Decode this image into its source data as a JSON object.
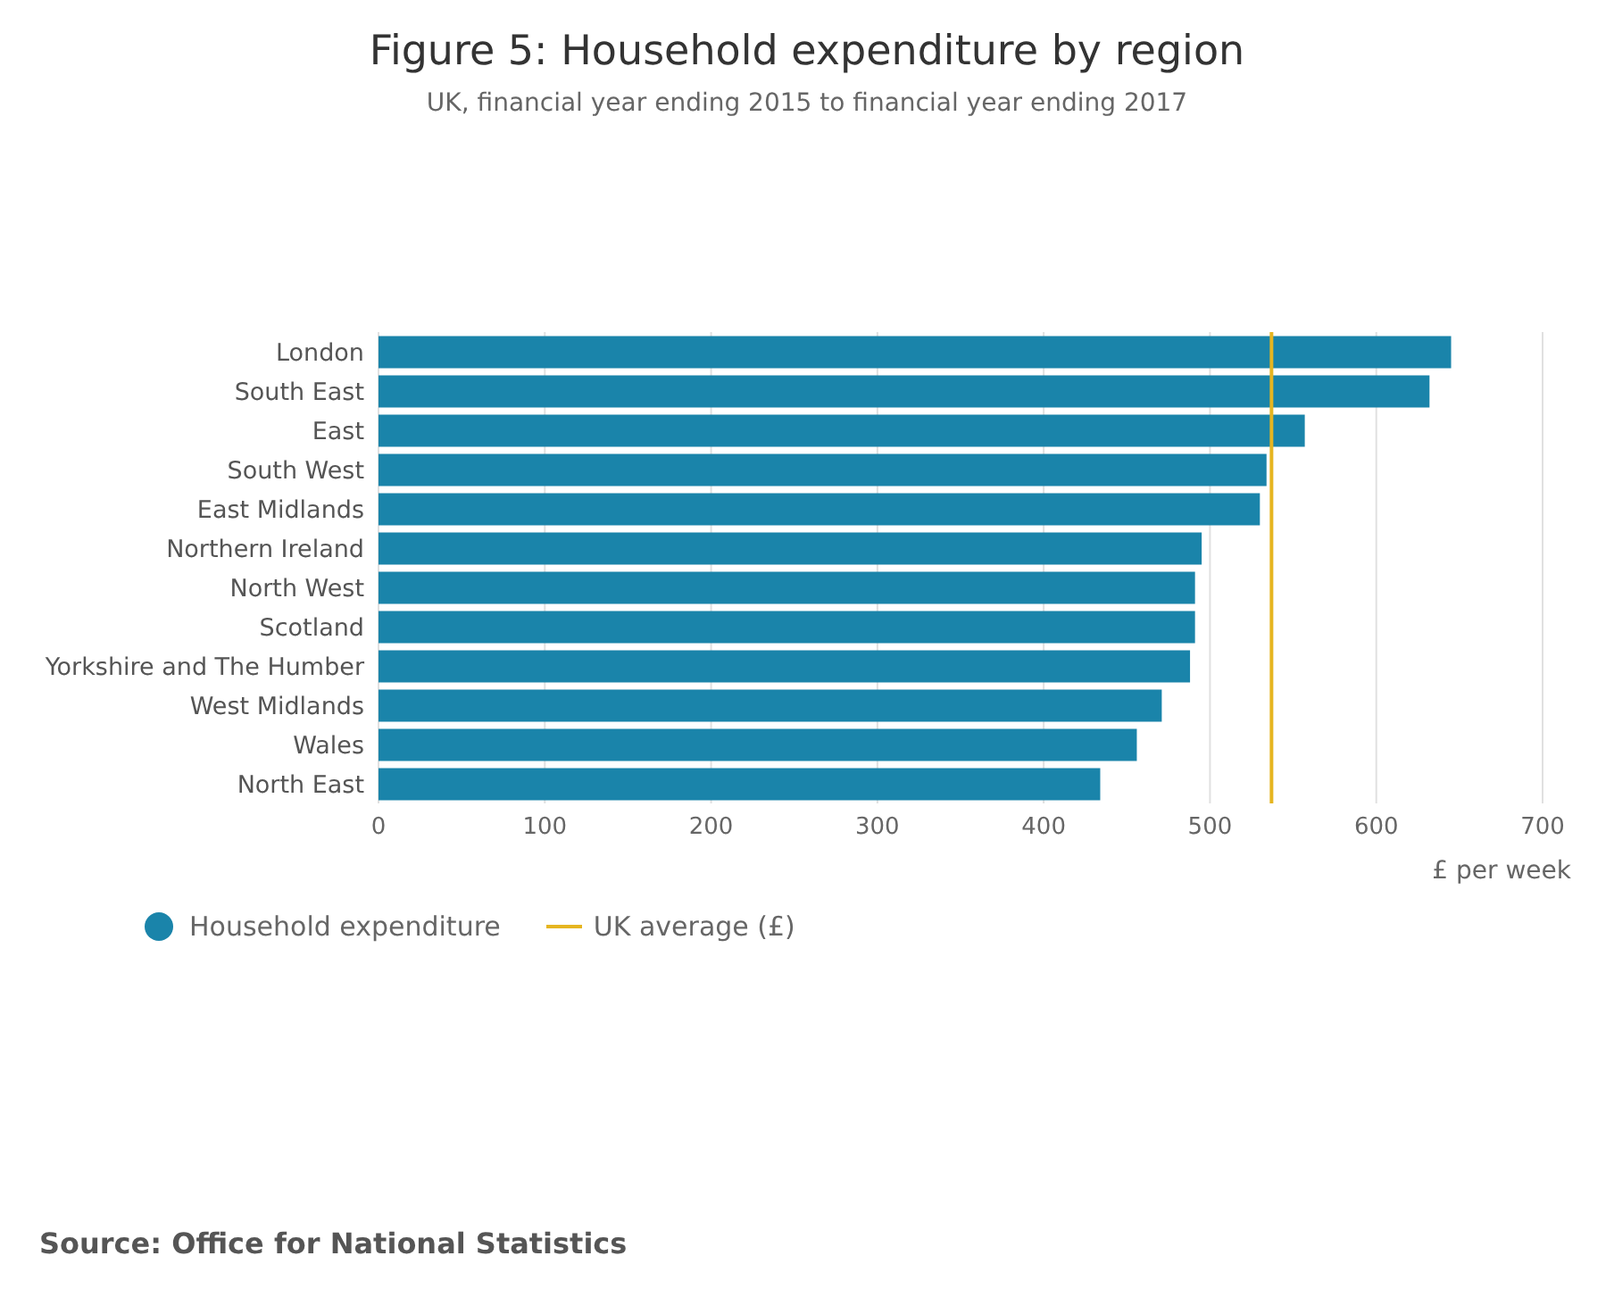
{
  "chart_data": {
    "type": "bar",
    "orientation": "horizontal",
    "title": "Figure 5: Household expenditure by region",
    "subtitle": "UK, financial year ending 2015 to financial year ending 2017",
    "xlabel": "£ per week",
    "categories": [
      "London",
      "South East",
      "East",
      "South West",
      "East Midlands",
      "Northern Ireland",
      "North West",
      "Scotland",
      "Yorkshire and The Humber",
      "West Midlands",
      "Wales",
      "North East"
    ],
    "series": [
      {
        "name": "Household expenditure",
        "color": "#1a84aa",
        "values": [
          645,
          632,
          557,
          534,
          530,
          495,
          491,
          491,
          488,
          471,
          456,
          434
        ]
      }
    ],
    "ref_lines": [
      {
        "axis": "x",
        "value": 537,
        "label": "UK average (£)",
        "color": "#e6b520"
      }
    ],
    "xlim": [
      0,
      700
    ],
    "xticks": [
      0,
      100,
      200,
      300,
      400,
      500,
      600,
      700
    ],
    "grid": "x",
    "legend": "bottom left",
    "annotations": [
      "Source: Office for National Statistics"
    ]
  }
}
